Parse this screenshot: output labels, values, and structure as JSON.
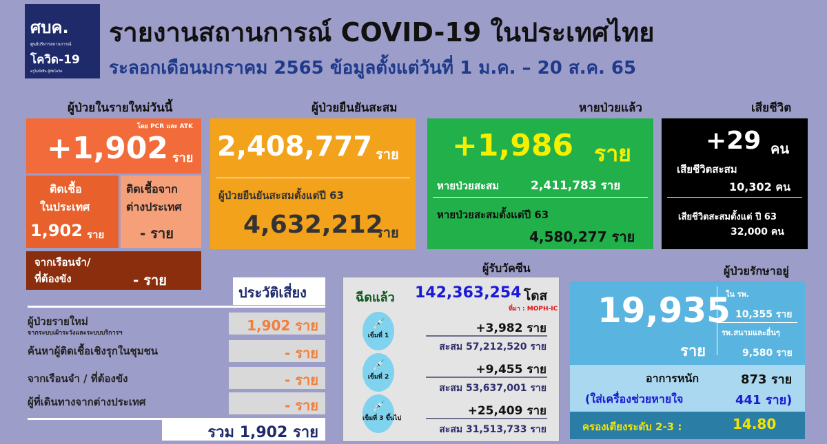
{
  "header": {
    "logo_text": "ศบค.",
    "logo_sub": "ศูนย์บริหารสถานการณ์",
    "logo_covid": "โควิด-19",
    "logo_tag": "ครูไม่ยั่งยืน สู้ภัยโควิด",
    "title": "รายงานสถานการณ์ COVID-19 ในประเทศไทย",
    "subtitle": "ระลอกเดือนมกราคม 2565 ข้อมูลตั้งแต่วันที่ 1 ม.ค. – 20 ส.ค. 65"
  },
  "new_cases": {
    "heading": "ผู้ป่วยในรายใหม่วันนี้",
    "note": "โดย PCR และ ATK",
    "value": "+1,902",
    "unit": "ราย",
    "domestic_label1": "ติดเชื้อ",
    "domestic_label2": "ในประเทศ",
    "domestic_value": "1,902",
    "domestic_unit": "ราย",
    "abroad_label1": "ติดเชื้อจาก",
    "abroad_label2": "ต่างประเทศ",
    "abroad_value": "- ราย",
    "prison_label1": "จากเรือนจำ/",
    "prison_label2": "ที่ต้องขัง",
    "prison_value": "- ราย"
  },
  "confirmed": {
    "heading": "ผู้ป่วยยืนยันสะสม",
    "value": "2,408,777",
    "unit": "ราย",
    "since_label": "ผู้ป่วยยืนยันสะสมตั้งแต่ปี 63",
    "since_value": "4,632,212",
    "since_unit": "ราย"
  },
  "recovered": {
    "heading": "หายป่วยแล้ว",
    "value": "+1,986",
    "unit": "ราย",
    "cum_label": "หายป่วยสะสม",
    "cum_value": "2,411,783 ราย",
    "since_label": "หายป่วยสะสมตั้งแต่ปี 63",
    "since_value": "4,580,277 ราย"
  },
  "deaths": {
    "heading": "เสียชีวิต",
    "value": "+29",
    "unit": "คน",
    "cum_label": "เสียชีวิตสะสม",
    "cum_value": "10,302 คน",
    "since_label": "เสียชีวิตสะสมตั้งแต่ ปี 63",
    "since_value": "32,000 คน"
  },
  "risk": {
    "heading": "ประวัติเสี่ยง",
    "rows": [
      {
        "label": "ผู้ป่วยรายใหม่",
        "sub": "จากระบบเฝ้าระวังและระบบบริการฯ",
        "value": "1,902 ราย"
      },
      {
        "label": "ค้นหาผู้ติดเชื้อเชิงรุกในชุมชน",
        "value": "- ราย"
      },
      {
        "label": "จากเรือนจำ / ที่ต้องขัง",
        "value": "- ราย"
      },
      {
        "label": "ผู้ที่เดินทางจากต่างประเทศ",
        "value": "- ราย"
      }
    ],
    "total": "รวม 1,902 ราย"
  },
  "vaccine": {
    "heading": "ผู้รับวัคซีน",
    "given_label": "ฉีดแล้ว",
    "given_value": "142,363,254",
    "given_unit": "โดส",
    "source": "ที่มา : MOPH-IC",
    "doses": [
      {
        "label": "เข็มที่ 1",
        "today": "+3,982 ราย",
        "cum": "สะสม 57,212,520 ราย"
      },
      {
        "label": "เข็มที่ 2",
        "today": "+9,455 ราย",
        "cum": "สะสม 53,637,001 ราย"
      },
      {
        "label": "เข็มที่ 3 ขึ้นไป",
        "today": "+25,409 ราย",
        "cum": "สะสม 31,513,733 ราย"
      }
    ]
  },
  "treatment": {
    "heading": "ผู้ป่วยรักษาอยู่",
    "value": "19,935",
    "unit": "ราย",
    "hospital_label": "ใน รพ.",
    "hospital_value": "10,355 ราย",
    "field_label": "รพ.สนามและอื่นๆ",
    "field_value": "9,580 ราย",
    "severe_label": "อาการหนัก",
    "severe_value": "873 ราย",
    "vent_label": "(ใส่เครื่องช่วยหายใจ",
    "vent_value": "441 ราย)",
    "bed_label": "ครองเตียงระดับ 2-3 :",
    "bed_value": "14.80"
  },
  "colors": {
    "background": "#9d9dca",
    "new": "#f26b3a",
    "confirmed": "#f3a21c",
    "recovered": "#21b04a",
    "deaths": "#000000",
    "treatment": "#5ab4e0"
  }
}
